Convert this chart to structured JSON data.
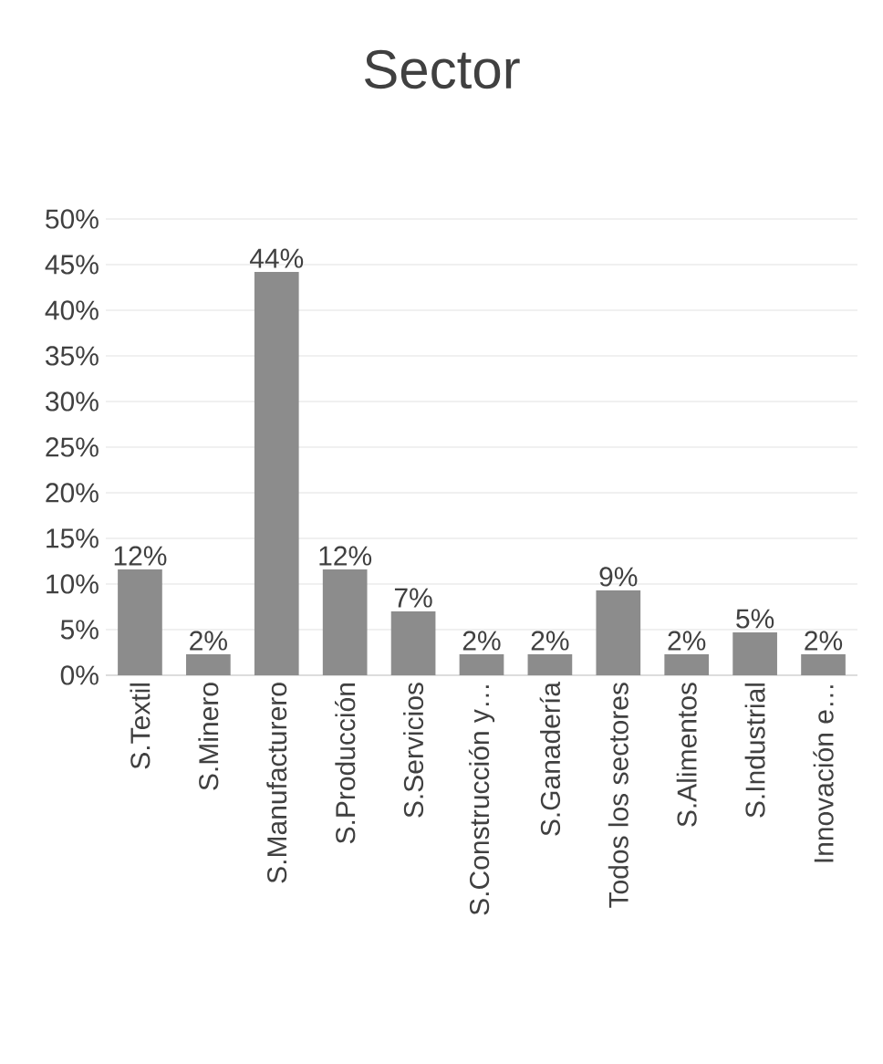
{
  "chart_data": {
    "type": "bar",
    "title": "Sector",
    "categories": [
      "S.Textil",
      "S.Minero",
      "S.Manufacturero",
      "S.Producción",
      "S.Servicios",
      "S.Construcción y…",
      "S.Ganadería",
      "Todos los sectores",
      "S.Alimentos",
      "S.Industrial",
      "Innovación e…"
    ],
    "values": [
      11.6,
      2.3,
      44.2,
      11.6,
      7.0,
      2.3,
      2.3,
      9.3,
      2.3,
      4.7,
      2.3
    ],
    "value_labels": [
      "12%",
      "2%",
      "44%",
      "12%",
      "7%",
      "2%",
      "2%",
      "9%",
      "2%",
      "5%",
      "2%"
    ],
    "color": "#8c8c8c",
    "ylim": [
      0,
      50
    ],
    "yticks": [
      {
        "value": 0,
        "label": "0%"
      },
      {
        "value": 5,
        "label": "5%"
      },
      {
        "value": 10,
        "label": "10%"
      },
      {
        "value": 15,
        "label": "15%"
      },
      {
        "value": 20,
        "label": "20%"
      },
      {
        "value": 25,
        "label": "25%"
      },
      {
        "value": 30,
        "label": "30%"
      },
      {
        "value": 35,
        "label": "35%"
      },
      {
        "value": 40,
        "label": "40%"
      },
      {
        "value": 45,
        "label": "45%"
      },
      {
        "value": 50,
        "label": "50%"
      }
    ],
    "grid": "y"
  }
}
